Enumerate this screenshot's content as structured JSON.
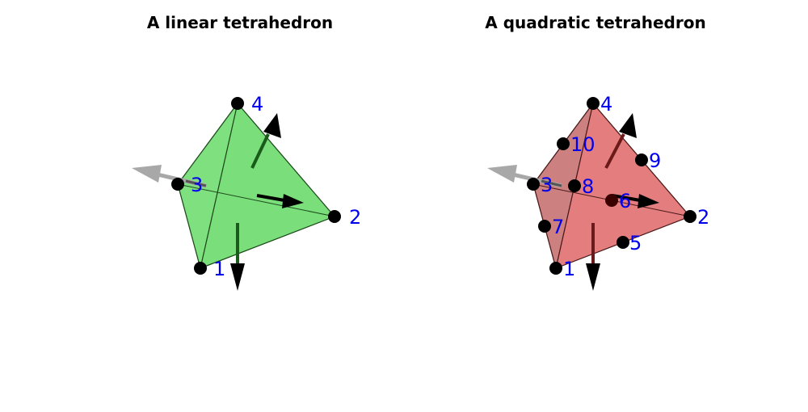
{
  "panels": [
    {
      "title": "A linear tetrahedron",
      "fill_color": "#5fd85f",
      "node_labels": [
        "1",
        "2",
        "3",
        "4"
      ]
    },
    {
      "title": "A quadratic tetrahedron",
      "fill_color": "#d95a5a",
      "node_labels": [
        "1",
        "2",
        "3",
        "4",
        "5",
        "6",
        "7",
        "8",
        "9",
        "10"
      ]
    }
  ],
  "colors": {
    "node": "#000000",
    "label": "#0000ee",
    "hidden_arrow": "#a8a8a8",
    "arrow": "#000000"
  }
}
